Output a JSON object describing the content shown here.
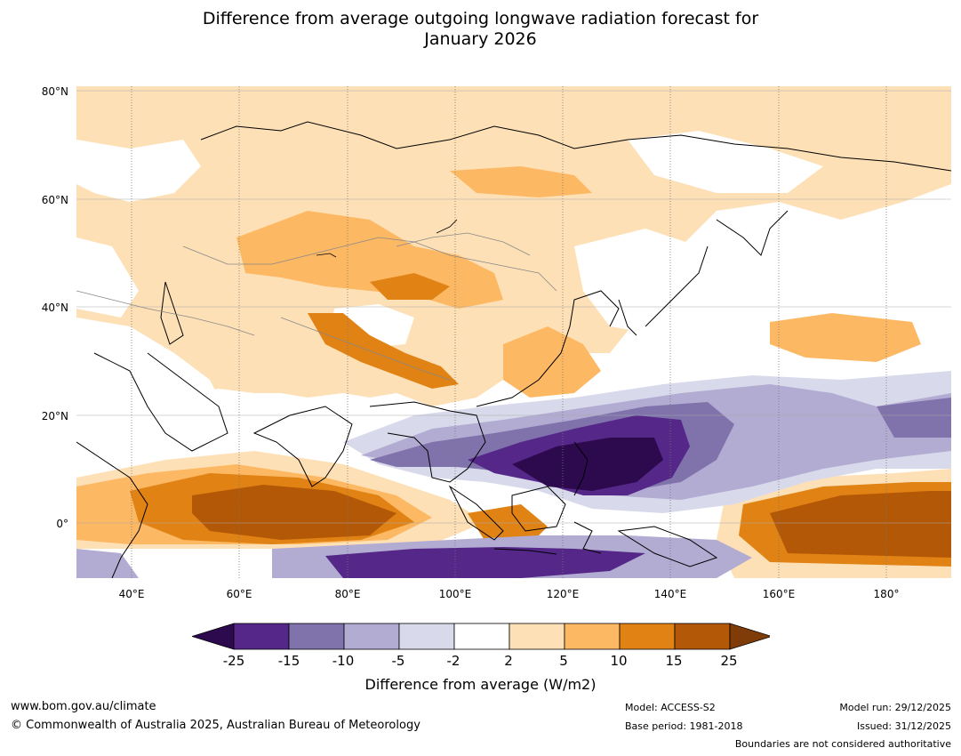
{
  "title": {
    "line1": "Difference from average outgoing longwave radiation forecast for",
    "line2": "January 2026"
  },
  "map": {
    "lat_labels": [
      "80°N",
      "60°N",
      "40°N",
      "20°N",
      "0°"
    ],
    "lon_labels": [
      "40°E",
      "60°E",
      "80°E",
      "100°E",
      "120°E",
      "140°E",
      "160°E",
      "180°"
    ]
  },
  "colorbar": {
    "ticks": [
      "-25",
      "-15",
      "-10",
      "-5",
      "-2",
      "2",
      "5",
      "10",
      "15",
      "25"
    ],
    "colors": [
      "#2d0a4e",
      "#542788",
      "#8073ac",
      "#b2abd2",
      "#d8daeb",
      "#ffffff",
      "#fee0b6",
      "#fdb863",
      "#e08214",
      "#b35806",
      "#7f3b08"
    ],
    "label": "Difference from average (W/m2)"
  },
  "footer": {
    "website": "www.bom.gov.au/climate",
    "copyright": "© Commonwealth of Australia 2025, Australian Bureau of Meteorology",
    "model": "Model: ACCESS-S2",
    "base_period": "Base period: 1981-2018",
    "model_run": "Model run: 29/12/2025",
    "issued": "Issued: 31/12/2025",
    "disclaimer": "Boundaries are not considered authoritative"
  }
}
